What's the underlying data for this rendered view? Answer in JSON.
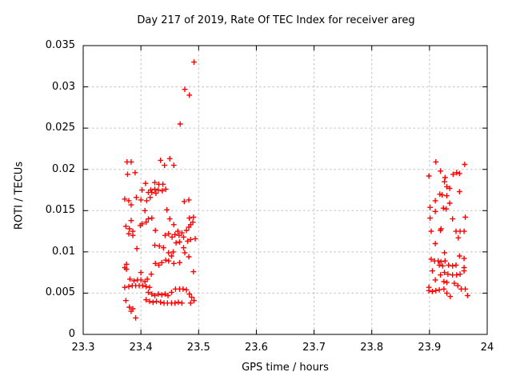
{
  "colors": {
    "marker": "#ff0000",
    "grid": "#c0c0c0",
    "axis": "#000000",
    "background": "#ffffff",
    "text": "#000000"
  },
  "chart_data": {
    "type": "scatter",
    "title": "Day 217 of 2019, Rate Of TEC Index for receiver areg",
    "xlabel": "GPS time / hours",
    "ylabel": "ROTI / TECUs",
    "xlim": [
      23.3,
      24
    ],
    "ylim": [
      0,
      0.035
    ],
    "xticks": [
      23.3,
      23.4,
      23.5,
      23.6,
      23.7,
      23.8,
      23.9,
      24
    ],
    "xtick_labels": [
      "23.3",
      "23.4",
      "23.5",
      "23.6",
      "23.7",
      "23.8",
      "23.9",
      "24"
    ],
    "yticks": [
      0,
      0.005,
      0.01,
      0.015,
      0.02,
      0.025,
      0.03,
      0.035
    ],
    "ytick_labels": [
      "0",
      "0.005",
      "0.01",
      "0.015",
      "0.02",
      "0.025",
      "0.03",
      "0.035"
    ],
    "grid": true,
    "legend": false,
    "marker": "plus",
    "series": [
      {
        "name": "ROTI",
        "points": [
          [
            23.492,
            0.033
          ],
          [
            23.476,
            0.0297
          ],
          [
            23.484,
            0.029
          ],
          [
            23.468,
            0.0255
          ],
          [
            23.376,
            0.0209
          ],
          [
            23.383,
            0.0209
          ],
          [
            23.377,
            0.0194
          ],
          [
            23.39,
            0.0196
          ],
          [
            23.434,
            0.0211
          ],
          [
            23.441,
            0.0205
          ],
          [
            23.45,
            0.0213
          ],
          [
            23.457,
            0.0205
          ],
          [
            23.408,
            0.0183
          ],
          [
            23.424,
            0.0184
          ],
          [
            23.431,
            0.0182
          ],
          [
            23.438,
            0.0182
          ],
          [
            23.402,
            0.0175
          ],
          [
            23.417,
            0.0175
          ],
          [
            23.424,
            0.0176
          ],
          [
            23.43,
            0.0175
          ],
          [
            23.437,
            0.0174
          ],
          [
            23.443,
            0.0176
          ],
          [
            23.413,
            0.0172
          ],
          [
            23.419,
            0.0172
          ],
          [
            23.426,
            0.0171
          ],
          [
            23.372,
            0.0164
          ],
          [
            23.379,
            0.0162
          ],
          [
            23.383,
            0.0157
          ],
          [
            23.392,
            0.0166
          ],
          [
            23.4,
            0.0163
          ],
          [
            23.41,
            0.0162
          ],
          [
            23.416,
            0.0166
          ],
          [
            23.407,
            0.015
          ],
          [
            23.445,
            0.0151
          ],
          [
            23.475,
            0.0161
          ],
          [
            23.483,
            0.0163
          ],
          [
            23.413,
            0.014
          ],
          [
            23.419,
            0.0141
          ],
          [
            23.45,
            0.014
          ],
          [
            23.383,
            0.0138
          ],
          [
            23.399,
            0.0132
          ],
          [
            23.402,
            0.0134
          ],
          [
            23.374,
            0.0131
          ],
          [
            23.38,
            0.0128
          ],
          [
            23.386,
            0.0125
          ],
          [
            23.379,
            0.0122
          ],
          [
            23.386,
            0.012
          ],
          [
            23.409,
            0.0136
          ],
          [
            23.425,
            0.0126
          ],
          [
            23.442,
            0.012
          ],
          [
            23.448,
            0.0122
          ],
          [
            23.454,
            0.0118
          ],
          [
            23.459,
            0.0121
          ],
          [
            23.457,
            0.0133
          ],
          [
            23.464,
            0.0125
          ],
          [
            23.466,
            0.012
          ],
          [
            23.471,
            0.0123
          ],
          [
            23.474,
            0.0118
          ],
          [
            23.479,
            0.0126
          ],
          [
            23.483,
            0.013
          ],
          [
            23.486,
            0.0133
          ],
          [
            23.49,
            0.0136
          ],
          [
            23.491,
            0.0142
          ],
          [
            23.484,
            0.0141
          ],
          [
            23.494,
            0.0116
          ],
          [
            23.486,
            0.0115
          ],
          [
            23.481,
            0.0113
          ],
          [
            23.467,
            0.0112
          ],
          [
            23.461,
            0.0111
          ],
          [
            23.424,
            0.0108
          ],
          [
            23.432,
            0.0107
          ],
          [
            23.439,
            0.0105
          ],
          [
            23.393,
            0.0104
          ],
          [
            23.448,
            0.0099
          ],
          [
            23.456,
            0.01
          ],
          [
            23.453,
            0.0095
          ],
          [
            23.474,
            0.0105
          ],
          [
            23.476,
            0.0099
          ],
          [
            23.483,
            0.0094
          ],
          [
            23.425,
            0.0086
          ],
          [
            23.431,
            0.0084
          ],
          [
            23.436,
            0.0087
          ],
          [
            23.443,
            0.009
          ],
          [
            23.448,
            0.0089
          ],
          [
            23.457,
            0.0086
          ],
          [
            23.467,
            0.0087
          ],
          [
            23.372,
            0.0081
          ],
          [
            23.375,
            0.0085
          ],
          [
            23.375,
            0.0079
          ],
          [
            23.4,
            0.0075
          ],
          [
            23.418,
            0.0073
          ],
          [
            23.491,
            0.0076
          ],
          [
            23.381,
            0.0067
          ],
          [
            23.388,
            0.0065
          ],
          [
            23.394,
            0.0066
          ],
          [
            23.4,
            0.0066
          ],
          [
            23.407,
            0.0064
          ],
          [
            23.411,
            0.0067
          ],
          [
            23.372,
            0.0057
          ],
          [
            23.379,
            0.0058
          ],
          [
            23.385,
            0.0059
          ],
          [
            23.391,
            0.0059
          ],
          [
            23.397,
            0.0059
          ],
          [
            23.403,
            0.0059
          ],
          [
            23.409,
            0.0058
          ],
          [
            23.415,
            0.0057
          ],
          [
            23.46,
            0.0055
          ],
          [
            23.467,
            0.0055
          ],
          [
            23.473,
            0.0055
          ],
          [
            23.479,
            0.0054
          ],
          [
            23.413,
            0.0051
          ],
          [
            23.419,
            0.0049
          ],
          [
            23.424,
            0.0047
          ],
          [
            23.43,
            0.0049
          ],
          [
            23.436,
            0.0048
          ],
          [
            23.442,
            0.0049
          ],
          [
            23.447,
            0.0047
          ],
          [
            23.453,
            0.0051
          ],
          [
            23.484,
            0.0049
          ],
          [
            23.488,
            0.0045
          ],
          [
            23.409,
            0.0042
          ],
          [
            23.415,
            0.004
          ],
          [
            23.421,
            0.0039
          ],
          [
            23.427,
            0.004
          ],
          [
            23.434,
            0.0039
          ],
          [
            23.44,
            0.0038
          ],
          [
            23.446,
            0.0038
          ],
          [
            23.453,
            0.0038
          ],
          [
            23.459,
            0.0038
          ],
          [
            23.465,
            0.0039
          ],
          [
            23.471,
            0.0038
          ],
          [
            23.492,
            0.0041
          ],
          [
            23.486,
            0.0038
          ],
          [
            23.374,
            0.0041
          ],
          [
            23.38,
            0.0033
          ],
          [
            23.386,
            0.0031
          ],
          [
            23.383,
            0.0028
          ],
          [
            23.391,
            0.002
          ],
          [
            23.911,
            0.0209
          ],
          [
            23.961,
            0.0206
          ],
          [
            23.919,
            0.0198
          ],
          [
            23.941,
            0.0194
          ],
          [
            23.947,
            0.0196
          ],
          [
            23.952,
            0.0195
          ],
          [
            23.899,
            0.0192
          ],
          [
            23.927,
            0.019
          ],
          [
            23.926,
            0.0185
          ],
          [
            23.93,
            0.0179
          ],
          [
            23.935,
            0.0177
          ],
          [
            23.952,
            0.0173
          ],
          [
            23.918,
            0.017
          ],
          [
            23.922,
            0.0169
          ],
          [
            23.93,
            0.0168
          ],
          [
            23.91,
            0.0162
          ],
          [
            23.935,
            0.0159
          ],
          [
            23.901,
            0.0154
          ],
          [
            23.924,
            0.0153
          ],
          [
            23.929,
            0.0152
          ],
          [
            23.91,
            0.0149
          ],
          [
            23.901,
            0.0141
          ],
          [
            23.94,
            0.014
          ],
          [
            23.962,
            0.0142
          ],
          [
            23.903,
            0.0125
          ],
          [
            23.919,
            0.0126
          ],
          [
            23.92,
            0.0128
          ],
          [
            23.946,
            0.0125
          ],
          [
            23.953,
            0.0125
          ],
          [
            23.96,
            0.0125
          ],
          [
            23.95,
            0.0117
          ],
          [
            23.91,
            0.011
          ],
          [
            23.926,
            0.0099
          ],
          [
            23.952,
            0.0095
          ],
          [
            23.96,
            0.0092
          ],
          [
            23.903,
            0.0091
          ],
          [
            23.909,
            0.0089
          ],
          [
            23.915,
            0.0089
          ],
          [
            23.92,
            0.0088
          ],
          [
            23.927,
            0.0089
          ],
          [
            23.917,
            0.0084
          ],
          [
            23.923,
            0.0083
          ],
          [
            23.933,
            0.0084
          ],
          [
            23.94,
            0.0083
          ],
          [
            23.946,
            0.0084
          ],
          [
            23.96,
            0.0081
          ],
          [
            23.96,
            0.0077
          ],
          [
            23.905,
            0.0077
          ],
          [
            23.919,
            0.0072
          ],
          [
            23.926,
            0.0075
          ],
          [
            23.932,
            0.0073
          ],
          [
            23.94,
            0.0072
          ],
          [
            23.947,
            0.0072
          ],
          [
            23.953,
            0.0073
          ],
          [
            23.91,
            0.0066
          ],
          [
            23.925,
            0.0064
          ],
          [
            23.93,
            0.0063
          ],
          [
            23.943,
            0.0062
          ],
          [
            23.949,
            0.0059
          ],
          [
            23.955,
            0.0055
          ],
          [
            23.899,
            0.0057
          ],
          [
            23.899,
            0.0053
          ],
          [
            23.905,
            0.0052
          ],
          [
            23.911,
            0.0053
          ],
          [
            23.917,
            0.0054
          ],
          [
            23.925,
            0.0055
          ],
          [
            23.93,
            0.005
          ],
          [
            23.936,
            0.0046
          ],
          [
            23.962,
            0.0055
          ],
          [
            23.966,
            0.0047
          ]
        ]
      }
    ]
  }
}
